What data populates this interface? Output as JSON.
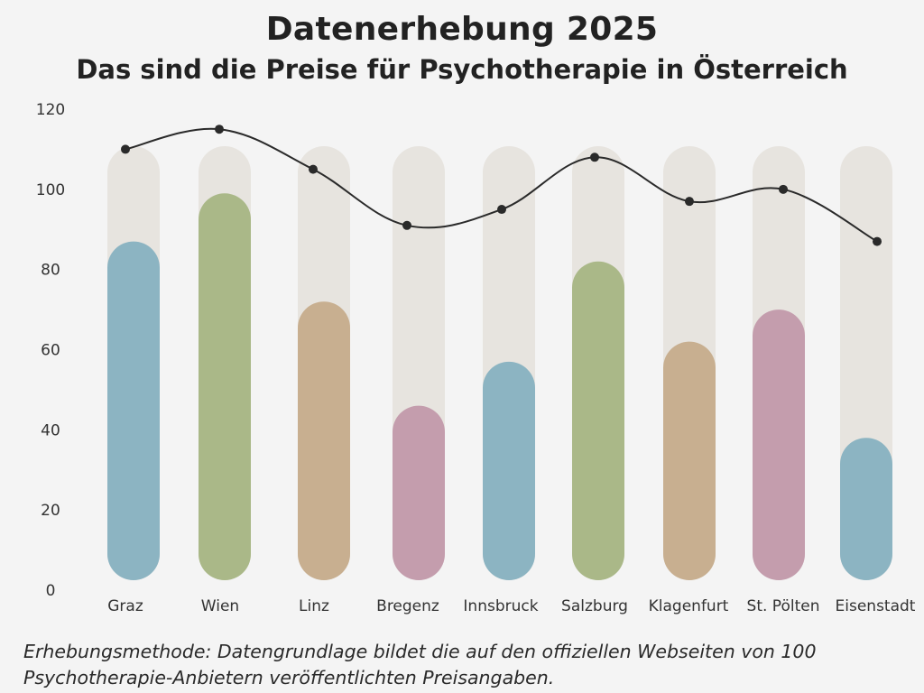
{
  "title": "Datenerhebung 2025",
  "subtitle": "Das sind die Preise für Psychotherapie in Österreich",
  "footnote": {
    "line1": "Erhebungsmethode: Datengrundlage bildet die auf den offiziellen Webseiten von 100",
    "line2": "Psychotherapie-Anbietern veröffentlichten Preisangaben."
  },
  "colors": {
    "background": "#f4f4f4",
    "track": "#e7e4df",
    "blue": "#8cb4c2",
    "green": "#aab888",
    "tan": "#c8af90",
    "mauve": "#c49dad",
    "line": "#2a2a2a"
  },
  "chart_data": {
    "type": "bar",
    "categories": [
      "Graz",
      "Wien",
      "Linz",
      "Bregenz",
      "Innsbruck",
      "Salzburg",
      "Klagenfurt",
      "St. Pölten",
      "Eisenstadt"
    ],
    "ylim": [
      0,
      120
    ],
    "yticks": [
      0,
      20,
      40,
      60,
      80,
      100,
      120
    ],
    "grid": false,
    "series": [
      {
        "kind": "bar",
        "values": [
          87,
          99,
          72,
          46,
          57,
          82,
          62,
          70,
          38
        ],
        "colors": [
          "#8cb4c2",
          "#aab888",
          "#c8af90",
          "#c49dad",
          "#8cb4c2",
          "#aab888",
          "#c8af90",
          "#c49dad",
          "#8cb4c2"
        ]
      },
      {
        "kind": "line",
        "values": [
          110,
          115,
          105,
          91,
          95,
          108,
          97,
          100,
          87
        ]
      }
    ]
  }
}
